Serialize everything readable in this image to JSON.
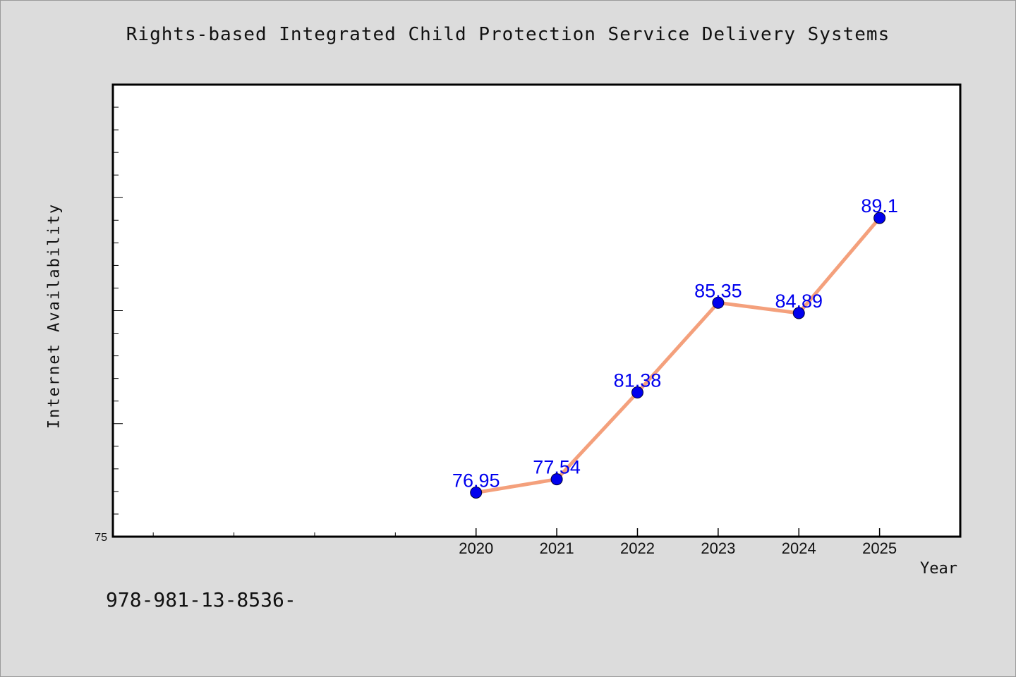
{
  "chart_data": {
    "type": "line",
    "title": "Rights-based Integrated Child Protection Service Delivery Systems",
    "xlabel": "Year",
    "ylabel": "Internet Availability",
    "x": [
      2020,
      2021,
      2022,
      2023,
      2024,
      2025
    ],
    "x_tick_labels": [
      "2020",
      "2021",
      "2022",
      "2023",
      "2024",
      "2025"
    ],
    "y_tick_labels": [
      "75"
    ],
    "series": [
      {
        "values": [
          76.95,
          77.54,
          81.38,
          85.35,
          84.89,
          89.1
        ],
        "data_labels": [
          "76.95",
          "77.54",
          "81.38",
          "85.35",
          "84.89",
          "89.1"
        ],
        "line_color": "#f4a07c",
        "marker_color": "#0000ee"
      }
    ],
    "xlim": [
      2015.5,
      2026
    ],
    "ylim": [
      75,
      95
    ],
    "grid": false,
    "legend": "none"
  },
  "footer": {
    "code": "978-981-13-8536-"
  },
  "colors": {
    "background": "#dcdcdc",
    "plot_background": "#ffffff",
    "data_label": "#0000ee"
  }
}
